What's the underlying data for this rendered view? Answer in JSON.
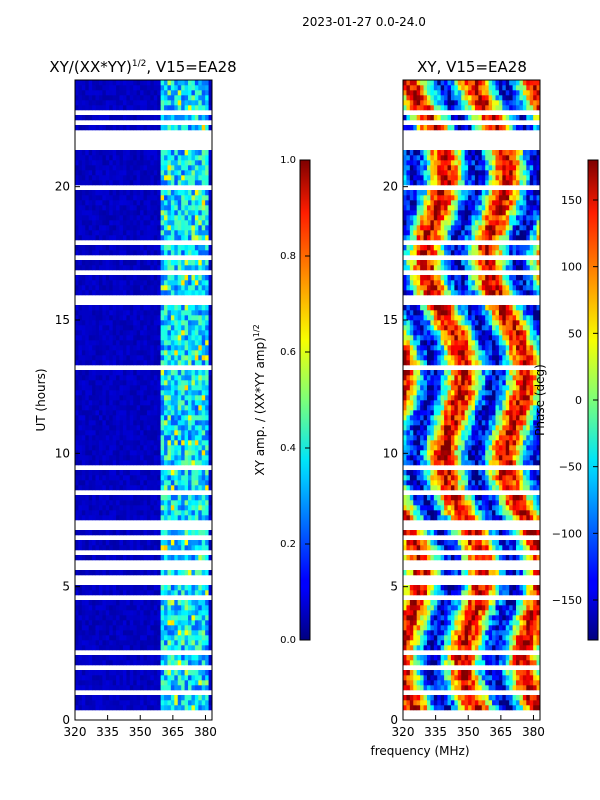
{
  "suptitle": "2023-01-27 0.0-24.0",
  "shared": {
    "xlabel": "frequency (MHz)",
    "ylabel": "UT (hours)"
  },
  "colors": {
    "background": "#ffffff",
    "axis": "#000000",
    "gap": "#ffffff"
  },
  "chart_data": [
    {
      "type": "heatmap",
      "id": "left",
      "title_main": "XY/(XX*YY)",
      "title_sup": "1/2",
      "title_tail": ", V15=EA28",
      "x_range": [
        320,
        383
      ],
      "y_range": [
        0,
        24
      ],
      "xticks": [
        320,
        335,
        350,
        365,
        380
      ],
      "yticks": [
        0,
        5,
        10,
        15,
        20
      ],
      "colormap": "jet",
      "colorbar": {
        "label": "XY amp. / (XX*YY amp)",
        "label_sup": "1/2",
        "range": [
          0.0,
          1.0
        ],
        "ticks": [
          "0.0",
          "0.2",
          "0.4",
          "0.6",
          "0.8",
          "1.0"
        ]
      }
    },
    {
      "type": "heatmap",
      "id": "right",
      "title": "XY, V15=EA28",
      "x_range": [
        320,
        383
      ],
      "y_range": [
        0,
        24
      ],
      "xticks": [
        320,
        335,
        350,
        365,
        380
      ],
      "yticks": [
        0,
        5,
        10,
        15,
        20
      ],
      "colormap": "jet",
      "colorbar": {
        "label": "Phase (deg)",
        "range": [
          -180,
          180
        ],
        "ticks": [
          "150",
          "100",
          "50",
          "0",
          "−50",
          "−100",
          "−150"
        ]
      }
    }
  ]
}
